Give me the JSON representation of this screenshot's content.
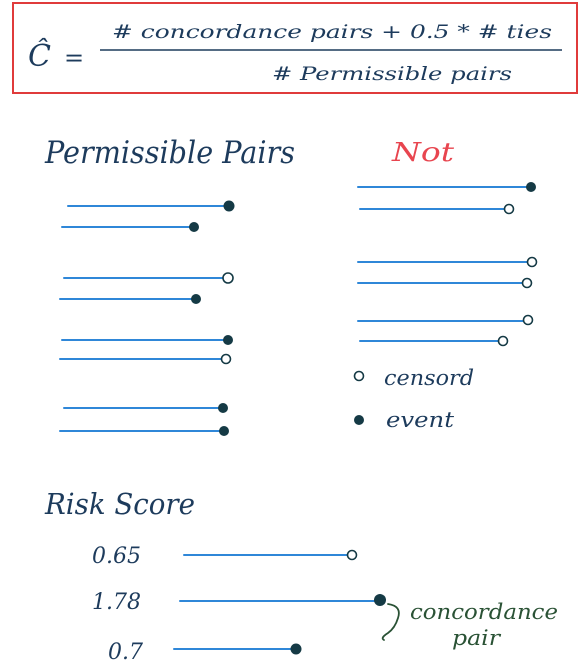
{
  "formula": {
    "lhs": "Ĉ",
    "equals": "=",
    "numerator": "# concordance pairs + 0.5 * # ties",
    "denominator": "# Permissible pairs",
    "border_color": "#e03b3b"
  },
  "permissible": {
    "title": "Permissible Pairs",
    "pairs": [
      {
        "top": "event",
        "bottom": "event"
      },
      {
        "top": "censored",
        "bottom": "event"
      },
      {
        "top": "event",
        "bottom": "censored"
      },
      {
        "top": "event",
        "bottom": "event"
      }
    ]
  },
  "not_permissible": {
    "title": "Not",
    "title_color": "#e8454f",
    "pairs": [
      {
        "top": "event",
        "bottom": "censored"
      },
      {
        "top": "censored",
        "bottom": "censored"
      },
      {
        "top": "censored",
        "bottom": "censored"
      }
    ]
  },
  "legend": {
    "censored_label": "censord",
    "event_label": "event"
  },
  "risk": {
    "title": "Risk Score",
    "rows": [
      {
        "score": "0.65",
        "end": "censored"
      },
      {
        "score": "1.78",
        "end": "event"
      },
      {
        "score": "0.7",
        "end": "event"
      }
    ],
    "brace_label_line1": "concordance",
    "brace_label_line2": "pair",
    "brace_color": "#2a5235"
  },
  "colors": {
    "ink": "#1d3b5c",
    "line": "#2f87d8",
    "dot": "#153a45"
  }
}
